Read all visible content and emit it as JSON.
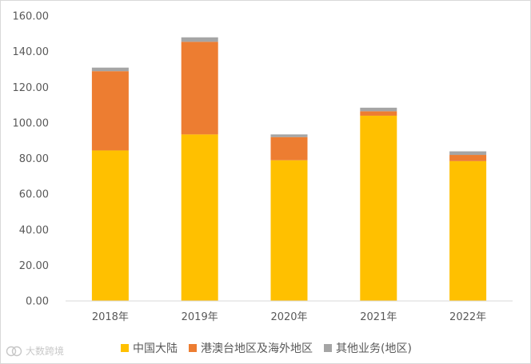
{
  "chart_data": {
    "type": "bar",
    "stacked": true,
    "categories": [
      "2018年",
      "2019年",
      "2020年",
      "2021年",
      "2022年"
    ],
    "series": [
      {
        "name": "中国大陆",
        "color": "#FFC000",
        "values": [
          84.5,
          93.5,
          79.0,
          104.0,
          78.5
        ]
      },
      {
        "name": "港澳台地区及海外地区",
        "color": "#ED7D31",
        "values": [
          44.5,
          52.0,
          13.0,
          2.5,
          3.5
        ]
      },
      {
        "name": "其他业务(地区)",
        "color": "#A5A5A5",
        "values": [
          2.0,
          2.5,
          1.5,
          2.0,
          2.0
        ]
      }
    ],
    "yticks": [
      "0.00",
      "20.00",
      "40.00",
      "60.00",
      "80.00",
      "100.00",
      "120.00",
      "140.00",
      "160.00"
    ],
    "ylim": [
      0,
      160
    ],
    "grid": false,
    "legend_position": "bottom",
    "title": "",
    "xlabel": "",
    "ylabel": ""
  },
  "watermark": {
    "text": "大数跨境",
    "icon": "logo-icon"
  }
}
